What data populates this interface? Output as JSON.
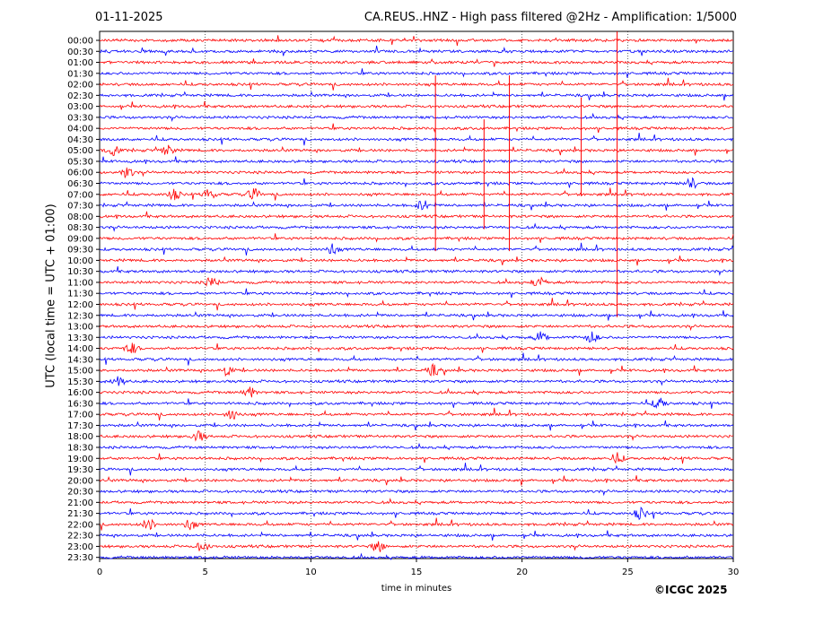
{
  "header": {
    "date": "01-11-2025",
    "title": "CA.REUS..HNZ - High pass filtered @2Hz - Amplification: 1/5000"
  },
  "footer": {
    "copyright": "©ICGC 2025"
  },
  "colors": {
    "trace_a": "#ff0000",
    "trace_b": "#0000ff",
    "axes": "#000000",
    "grid": "#000000"
  },
  "chart_data": {
    "type": "line",
    "title": "CA.REUS..HNZ - High pass filtered @2Hz - Amplification: 1/5000",
    "xlabel": "time in minutes",
    "ylabel": "UTC (local time = UTC + 01:00)",
    "xlim": [
      0,
      30
    ],
    "xticks": [
      "0",
      "5",
      "10",
      "15",
      "20",
      "25",
      "30"
    ],
    "grid": "vertical dotted lines at x = 5, 10, 15, 20, 25",
    "rows": [
      "00:00",
      "00:30",
      "01:00",
      "01:30",
      "02:00",
      "02:30",
      "03:00",
      "03:30",
      "04:00",
      "04:30",
      "05:00",
      "05:30",
      "06:00",
      "06:30",
      "07:00",
      "07:30",
      "08:00",
      "08:30",
      "09:00",
      "09:30",
      "10:00",
      "10:30",
      "11:00",
      "11:30",
      "12:00",
      "12:30",
      "13:00",
      "13:30",
      "14:00",
      "14:30",
      "15:00",
      "15:30",
      "16:00",
      "16:30",
      "17:00",
      "17:30",
      "18:00",
      "18:30",
      "19:00",
      "19:30",
      "20:00",
      "20:30",
      "21:00",
      "21:30",
      "22:00",
      "22:30",
      "23:00",
      "23:30"
    ],
    "row_colors": "alternating red / blue starting with red at 00:00",
    "events": [
      {
        "row": "05:00",
        "minute": 0.6
      },
      {
        "row": "05:00",
        "minute": 3.2
      },
      {
        "row": "06:00",
        "minute": 1.3
      },
      {
        "row": "06:30",
        "minute": 28.0
      },
      {
        "row": "07:00",
        "minute": 3.5
      },
      {
        "row": "07:00",
        "minute": 5.2
      },
      {
        "row": "07:00",
        "minute": 7.3
      },
      {
        "row": "07:30",
        "minute": 15.3
      },
      {
        "row": "09:30",
        "minute": 11.0
      },
      {
        "row": "11:00",
        "minute": 5.3
      },
      {
        "row": "11:00",
        "minute": 20.8
      },
      {
        "row": "13:30",
        "minute": 20.9
      },
      {
        "row": "13:30",
        "minute": 23.3
      },
      {
        "row": "14:00",
        "minute": 1.5
      },
      {
        "row": "15:00",
        "minute": 6.0
      },
      {
        "row": "15:00",
        "minute": 15.8
      },
      {
        "row": "15:30",
        "minute": 0.9
      },
      {
        "row": "16:00",
        "minute": 7.1
      },
      {
        "row": "16:30",
        "minute": 26.5
      },
      {
        "row": "17:00",
        "minute": 6.3
      },
      {
        "row": "18:00",
        "minute": 4.7
      },
      {
        "row": "19:00",
        "minute": 24.5
      },
      {
        "row": "21:30",
        "minute": 25.6
      },
      {
        "row": "22:00",
        "minute": 2.3
      },
      {
        "row": "22:00",
        "minute": 4.3
      },
      {
        "row": "23:00",
        "minute": 4.9
      },
      {
        "row": "23:00",
        "minute": 13.2
      }
    ],
    "vertical_spikes": [
      {
        "minute": 15.9,
        "from": "02:00",
        "to": "09:30"
      },
      {
        "minute": 18.2,
        "from": "04:00",
        "to": "08:30"
      },
      {
        "minute": 19.4,
        "from": "02:00",
        "to": "09:30"
      },
      {
        "minute": 22.8,
        "from": "03:00",
        "to": "07:00"
      },
      {
        "minute": 24.5,
        "from": "00:00",
        "to": "12:30"
      }
    ]
  }
}
